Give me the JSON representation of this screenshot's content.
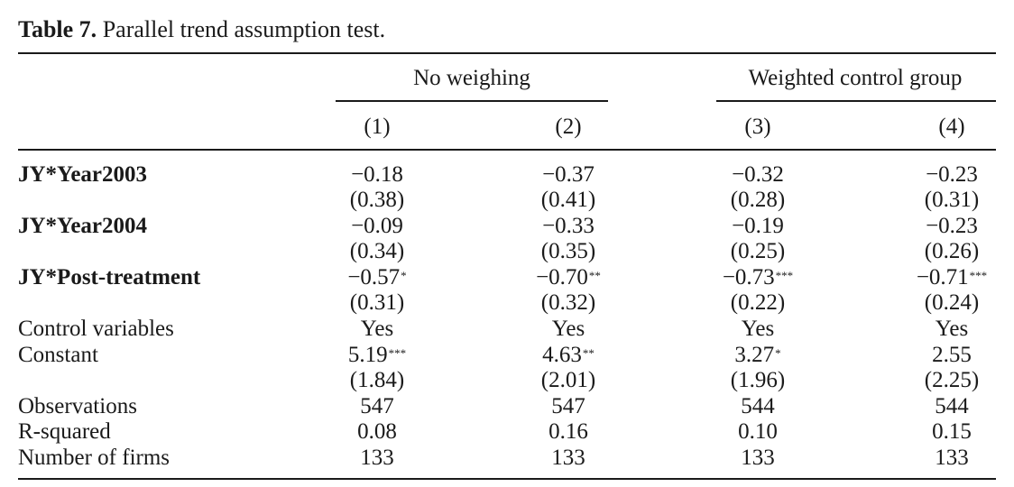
{
  "caption": {
    "label": "Table 7.",
    "text": "Parallel trend assumption test."
  },
  "groups": [
    "No weighing",
    "Weighted control group"
  ],
  "columns": [
    "(1)",
    "(2)",
    "(3)",
    "(4)"
  ],
  "rows": [
    {
      "label": "JY*Year2003",
      "bold": true,
      "cells": [
        {
          "v": "−0.18"
        },
        {
          "v": "−0.37"
        },
        {
          "v": "−0.32"
        },
        {
          "v": "−0.23"
        }
      ]
    },
    {
      "label": "",
      "cells": [
        {
          "v": "(0.38)"
        },
        {
          "v": "(0.41)"
        },
        {
          "v": "(0.28)"
        },
        {
          "v": "(0.31)"
        }
      ]
    },
    {
      "label": "JY*Year2004",
      "bold": true,
      "cells": [
        {
          "v": "−0.09"
        },
        {
          "v": "−0.33"
        },
        {
          "v": "−0.19"
        },
        {
          "v": "−0.23"
        }
      ]
    },
    {
      "label": "",
      "cells": [
        {
          "v": "(0.34)"
        },
        {
          "v": "(0.35)"
        },
        {
          "v": "(0.25)"
        },
        {
          "v": "(0.26)"
        }
      ]
    },
    {
      "label": "JY*Post-treatment",
      "bold": true,
      "cells": [
        {
          "v": "−0.57",
          "s": "*"
        },
        {
          "v": "−0.70",
          "s": "**"
        },
        {
          "v": "−0.73",
          "s": "***"
        },
        {
          "v": "−0.71",
          "s": "***"
        }
      ]
    },
    {
      "label": "",
      "cells": [
        {
          "v": "(0.31)"
        },
        {
          "v": "(0.32)"
        },
        {
          "v": "(0.22)"
        },
        {
          "v": "(0.24)"
        }
      ]
    },
    {
      "label": "Control variables",
      "cells": [
        {
          "v": "Yes"
        },
        {
          "v": "Yes"
        },
        {
          "v": "Yes"
        },
        {
          "v": "Yes"
        }
      ]
    },
    {
      "label": "Constant",
      "cells": [
        {
          "v": "5.19",
          "s": "***"
        },
        {
          "v": "4.63",
          "s": "**"
        },
        {
          "v": "3.27",
          "s": "*"
        },
        {
          "v": "2.55"
        }
      ]
    },
    {
      "label": "",
      "cells": [
        {
          "v": "(1.84)"
        },
        {
          "v": "(2.01)"
        },
        {
          "v": "(1.96)"
        },
        {
          "v": "(2.25)"
        }
      ]
    },
    {
      "label": "Observations",
      "cells": [
        {
          "v": "547"
        },
        {
          "v": "547"
        },
        {
          "v": "544"
        },
        {
          "v": "544"
        }
      ]
    },
    {
      "label": "R-squared",
      "cells": [
        {
          "v": "0.08"
        },
        {
          "v": "0.16"
        },
        {
          "v": "0.10"
        },
        {
          "v": "0.15"
        }
      ]
    },
    {
      "label": "Number of firms",
      "cells": [
        {
          "v": "133"
        },
        {
          "v": "133"
        },
        {
          "v": "133"
        },
        {
          "v": "133"
        }
      ]
    }
  ]
}
